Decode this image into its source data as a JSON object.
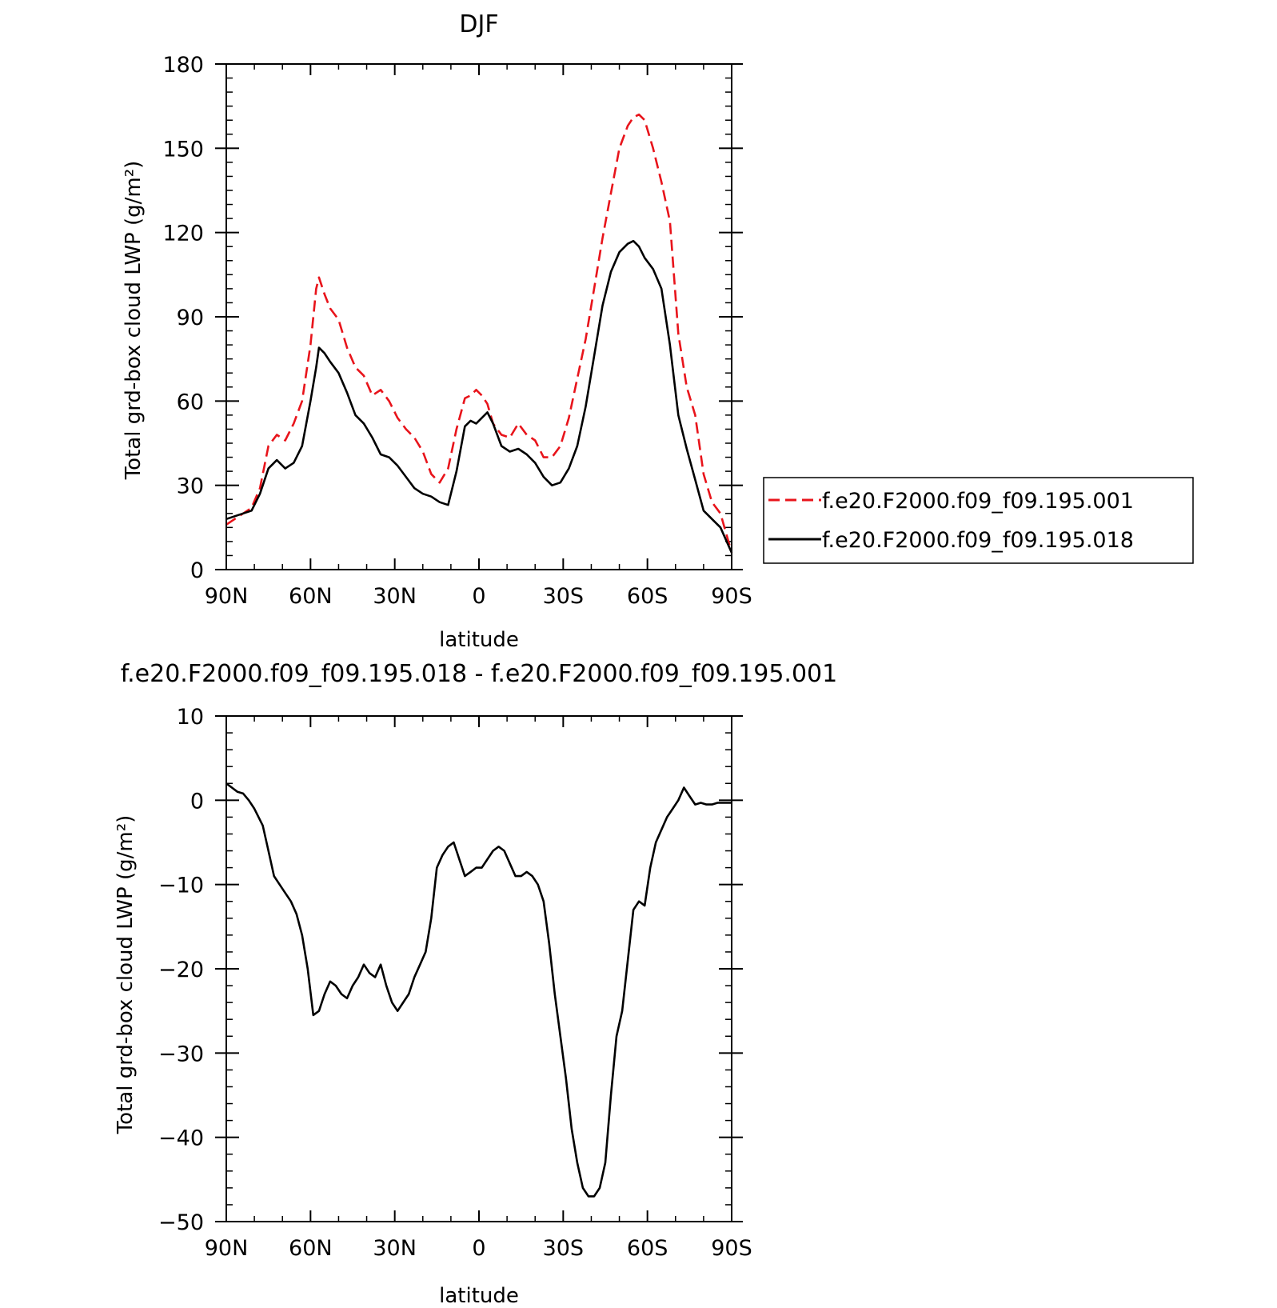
{
  "chart_data": [
    {
      "type": "line",
      "title": "DJF",
      "xlabel": "latitude",
      "ylabel": "Total grd-box cloud LWP (g/m²)",
      "x_ticks": [
        90,
        60,
        30,
        0,
        -30,
        -60,
        -90
      ],
      "x_tick_labels": [
        "90N",
        "60N",
        "30N",
        "0",
        "30S",
        "60S",
        "90S"
      ],
      "xlim": [
        90,
        -90
      ],
      "ylim": [
        0,
        180
      ],
      "y_ticks": [
        0,
        30,
        60,
        90,
        120,
        150,
        180
      ],
      "y_tick_labels": [
        "0",
        "30",
        "60",
        "90",
        "120",
        "150",
        "180"
      ],
      "grid": false,
      "legend_position": "right",
      "series": [
        {
          "name": "f.e20.F2000.f09_f09.195.001",
          "color": "#e8141b",
          "dash": "dashed",
          "x": [
            90,
            87,
            84,
            81,
            78,
            75,
            72,
            69,
            66,
            63,
            60,
            58,
            57,
            55,
            53,
            50,
            47,
            44,
            41,
            38,
            35,
            32,
            29,
            26,
            23,
            20,
            17,
            14,
            11,
            8,
            5,
            3,
            1,
            -1,
            -3,
            -5,
            -8,
            -11,
            -14,
            -17,
            -20,
            -23,
            -26,
            -29,
            -32,
            -35,
            -38,
            -41,
            -44,
            -47,
            -50,
            -53,
            -55,
            -57,
            -59,
            -62,
            -65,
            -68,
            -71,
            -74,
            -77,
            -80,
            -83,
            -86,
            -90
          ],
          "values": [
            16,
            18,
            20,
            22,
            29,
            44,
            48,
            46,
            52,
            60,
            80,
            100,
            104,
            98,
            93,
            89,
            79,
            72,
            69,
            62,
            64,
            60,
            54,
            50,
            47,
            42,
            34,
            31,
            36,
            50,
            61,
            62,
            64,
            62,
            59,
            52,
            48,
            47,
            52,
            48,
            46,
            40,
            40,
            44,
            54,
            68,
            82,
            100,
            118,
            134,
            150,
            158,
            161,
            162,
            160,
            150,
            138,
            124,
            84,
            65,
            55,
            34,
            24,
            20,
            6
          ]
        },
        {
          "name": "f.e20.F2000.f09_f09.195.018",
          "color": "#000000",
          "dash": "solid",
          "x": [
            90,
            87,
            84,
            81,
            78,
            75,
            72,
            69,
            66,
            63,
            60,
            58,
            57,
            55,
            53,
            50,
            47,
            44,
            41,
            38,
            35,
            32,
            29,
            26,
            23,
            20,
            17,
            14,
            11,
            8,
            5,
            3,
            1,
            -1,
            -3,
            -5,
            -8,
            -11,
            -14,
            -17,
            -20,
            -23,
            -26,
            -29,
            -32,
            -35,
            -38,
            -41,
            -44,
            -47,
            -50,
            -53,
            -55,
            -57,
            -59,
            -62,
            -65,
            -68,
            -71,
            -74,
            -77,
            -80,
            -83,
            -86,
            -90
          ],
          "values": [
            18,
            19,
            20,
            21,
            27,
            36,
            39,
            36,
            38,
            44,
            60,
            72,
            79,
            77,
            74,
            70,
            63,
            55,
            52,
            47,
            41,
            40,
            37,
            33,
            29,
            27,
            26,
            24,
            23,
            35,
            51,
            53,
            52,
            54,
            56,
            52,
            44,
            42,
            43,
            41,
            38,
            33,
            30,
            31,
            36,
            44,
            58,
            76,
            94,
            106,
            113,
            116,
            117,
            115,
            111,
            107,
            100,
            80,
            55,
            43,
            32,
            21,
            18,
            15,
            6
          ]
        }
      ]
    },
    {
      "type": "line",
      "title": "f.e20.F2000.f09_f09.195.018 - f.e20.F2000.f09_f09.195.001",
      "xlabel": "latitude",
      "ylabel": "Total grd-box cloud LWP (g/m²)",
      "x_ticks": [
        90,
        60,
        30,
        0,
        -30,
        -60,
        -90
      ],
      "x_tick_labels": [
        "90N",
        "60N",
        "30N",
        "0",
        "30S",
        "60S",
        "90S"
      ],
      "xlim": [
        90,
        -90
      ],
      "ylim": [
        -50,
        10
      ],
      "y_ticks": [
        -50,
        -40,
        -30,
        -20,
        -10,
        0,
        10
      ],
      "y_tick_labels": [
        "−50",
        "−40",
        "−30",
        "−20",
        "−10",
        "0",
        "10"
      ],
      "grid": false,
      "series": [
        {
          "color": "#000000",
          "dash": "solid",
          "x": [
            90,
            88,
            86,
            84,
            82,
            80,
            77,
            75,
            73,
            71,
            69,
            67,
            65,
            63,
            61,
            59,
            57,
            55,
            53,
            51,
            49,
            47,
            45,
            43,
            41,
            39,
            37,
            35,
            33,
            31,
            29,
            27,
            25,
            23,
            21,
            19,
            17,
            15,
            13,
            11,
            9,
            7,
            5,
            3,
            1,
            -1,
            -3,
            -5,
            -7,
            -9,
            -11,
            -13,
            -15,
            -17,
            -19,
            -21,
            -23,
            -25,
            -27,
            -29,
            -31,
            -33,
            -35,
            -37,
            -39,
            -41,
            -43,
            -45,
            -47,
            -49,
            -51,
            -53,
            -55,
            -57,
            -59,
            -61,
            -63,
            -65,
            -67,
            -69,
            -71,
            -73,
            -75,
            -77,
            -79,
            -81,
            -83,
            -85,
            -87,
            -89,
            -90
          ],
          "values": [
            2,
            1.5,
            1,
            0.8,
            0,
            -1,
            -3,
            -6,
            -9,
            -10,
            -11,
            -12,
            -13.5,
            -16,
            -20,
            -25.5,
            -25,
            -23,
            -21.5,
            -22,
            -23,
            -23.5,
            -22,
            -21,
            -19.5,
            -20.5,
            -21,
            -19.5,
            -22,
            -24,
            -25,
            -24,
            -23,
            -21,
            -19.5,
            -18,
            -14,
            -8,
            -6.5,
            -5.5,
            -5,
            -7,
            -9,
            -8.5,
            -8,
            -8,
            -7,
            -6,
            -5.5,
            -6,
            -7.5,
            -9,
            -9,
            -8.5,
            -9,
            -10,
            -12,
            -17,
            -23,
            -28,
            -33,
            -39,
            -43,
            -46,
            -47,
            -47,
            -46,
            -43,
            -35,
            -28,
            -25,
            -19,
            -13,
            -12,
            -12.5,
            -8,
            -5,
            -3.5,
            -2,
            -1,
            0,
            1.5,
            0.5,
            -0.5,
            -0.3,
            -0.5,
            -0.5,
            -0.3,
            -0.3,
            -0.3,
            -0.3
          ]
        }
      ]
    }
  ]
}
